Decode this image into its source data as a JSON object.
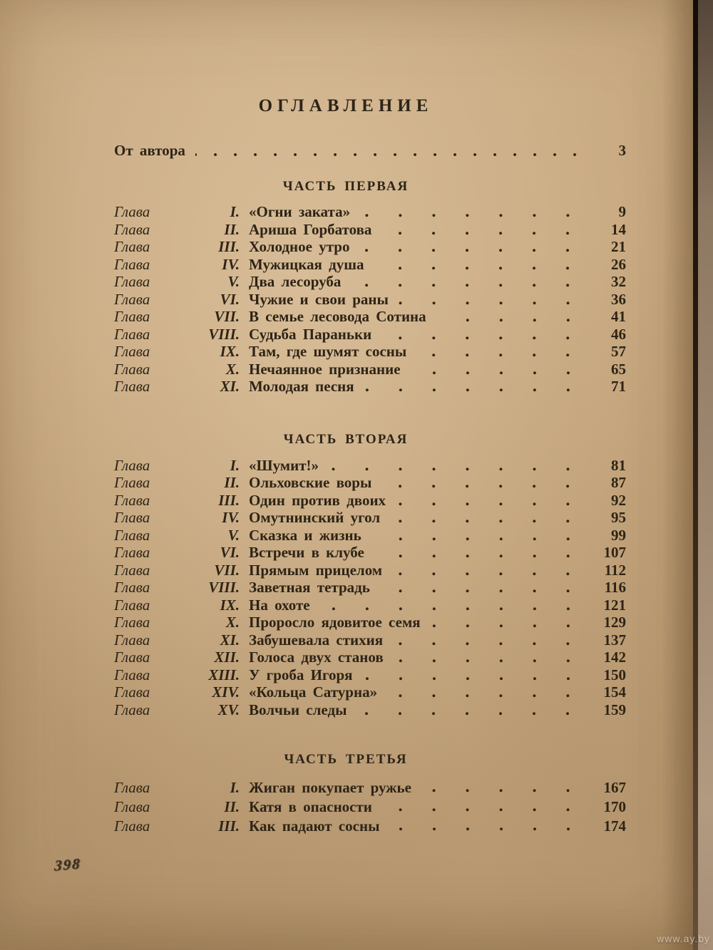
{
  "colors": {
    "paper": "#c6a77f",
    "ink": "#2e2416",
    "edge_seam": "#241a10",
    "watermark_text": "rgba(255,255,255,0.55)"
  },
  "photo": {
    "stamp": "398",
    "watermark": "www.ay.by"
  },
  "toc": {
    "title": "ОГЛАВЛЕНИЕ",
    "chapter_word": "Глава",
    "front_item": {
      "label": "От автора",
      "page": "3"
    },
    "sections": [
      {
        "heading": "ЧАСТЬ ПЕРВАЯ",
        "chapters": [
          {
            "numeral": "I.",
            "title": "«Огни заката»",
            "page": "9"
          },
          {
            "numeral": "II.",
            "title": "Ариша Горбатова",
            "page": "14"
          },
          {
            "numeral": "III.",
            "title": "Холодное утро",
            "page": "21"
          },
          {
            "numeral": "IV.",
            "title": "Мужицкая душа",
            "page": "26"
          },
          {
            "numeral": "V.",
            "title": "Два лесоруба",
            "page": "32"
          },
          {
            "numeral": "VI.",
            "title": "Чужие и свои раны",
            "page": "36"
          },
          {
            "numeral": "VII.",
            "title": "В семье лесовода Сотина",
            "page": "41"
          },
          {
            "numeral": "VIII.",
            "title": "Судьба Параньки",
            "page": "46"
          },
          {
            "numeral": "IX.",
            "title": "Там, где шумят сосны",
            "page": "57"
          },
          {
            "numeral": "X.",
            "title": "Нечаянное признание",
            "page": "65"
          },
          {
            "numeral": "XI.",
            "title": "Молодая песня",
            "page": "71"
          }
        ]
      },
      {
        "heading": "ЧАСТЬ ВТОРАЯ",
        "chapters": [
          {
            "numeral": "I.",
            "title": "«Шумит!»",
            "page": "81"
          },
          {
            "numeral": "II.",
            "title": "Ольховские воры",
            "page": "87"
          },
          {
            "numeral": "III.",
            "title": "Один против двоих",
            "page": "92"
          },
          {
            "numeral": "IV.",
            "title": "Омутнинский угол",
            "page": "95"
          },
          {
            "numeral": "V.",
            "title": "Сказка и жизнь",
            "page": "99"
          },
          {
            "numeral": "VI.",
            "title": "Встречи в клубе",
            "page": "107"
          },
          {
            "numeral": "VII.",
            "title": "Прямым прицелом",
            "page": "112"
          },
          {
            "numeral": "VIII.",
            "title": "Заветная тетрадь",
            "page": "116"
          },
          {
            "numeral": "IX.",
            "title": "На охоте",
            "page": "121"
          },
          {
            "numeral": "X.",
            "title": "Проросло ядовитое семя",
            "page": "129"
          },
          {
            "numeral": "XI.",
            "title": "Забушевала стихия",
            "page": "137"
          },
          {
            "numeral": "XII.",
            "title": "Голоса двух станов",
            "page": "142"
          },
          {
            "numeral": "XIII.",
            "title": "У гроба Игоря",
            "page": "150"
          },
          {
            "numeral": "XIV.",
            "title": "«Кольца Сатурна»",
            "page": "154"
          },
          {
            "numeral": "XV.",
            "title": "Волчьи следы",
            "page": "159"
          }
        ]
      },
      {
        "heading": "ЧАСТЬ ТРЕТЬЯ",
        "chapters": [
          {
            "numeral": "I.",
            "title": "Жиган покупает ружье",
            "page": "167"
          },
          {
            "numeral": "II.",
            "title": "Катя в опасности",
            "page": "170"
          },
          {
            "numeral": "III.",
            "title": "Как падают сосны",
            "page": "174"
          }
        ]
      }
    ]
  }
}
